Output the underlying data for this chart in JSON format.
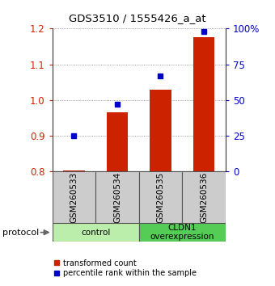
{
  "title": "GDS3510 / 1555426_a_at",
  "samples": [
    "GSM260533",
    "GSM260534",
    "GSM260535",
    "GSM260536"
  ],
  "red_values": [
    0.803,
    0.965,
    1.03,
    1.175
  ],
  "blue_percentiles": [
    25,
    47,
    67,
    98
  ],
  "ylim_left": [
    0.8,
    1.2
  ],
  "ylim_right": [
    0,
    100
  ],
  "yticks_left": [
    0.8,
    0.9,
    1.0,
    1.1,
    1.2
  ],
  "yticks_right": [
    0,
    25,
    50,
    75,
    100
  ],
  "ytick_labels_right": [
    "0",
    "25",
    "50",
    "75",
    "100%"
  ],
  "bar_bottom": 0.8,
  "bar_color": "#cc2200",
  "dot_color": "#0000cc",
  "groups": [
    {
      "label": "control",
      "start": 0,
      "end": 2,
      "color": "#bbeeaa"
    },
    {
      "label": "CLDN1\noverexpression",
      "start": 2,
      "end": 4,
      "color": "#55cc55"
    }
  ],
  "protocol_label": "protocol",
  "legend_items": [
    {
      "color": "#cc2200",
      "label": "transformed count"
    },
    {
      "color": "#0000cc",
      "label": "percentile rank within the sample"
    }
  ],
  "bg_color": "#ffffff",
  "sample_box_color": "#cccccc",
  "grid_color": "#777777",
  "bar_width": 0.5,
  "dot_size": 5
}
